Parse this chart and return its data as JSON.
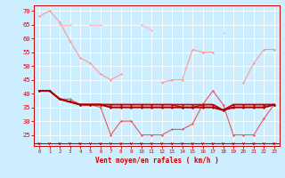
{
  "x": [
    0,
    1,
    2,
    3,
    4,
    5,
    6,
    7,
    8,
    9,
    10,
    11,
    12,
    13,
    14,
    15,
    16,
    17,
    18,
    19,
    20,
    21,
    22,
    23
  ],
  "series": [
    {
      "color": "#ff9999",
      "linewidth": 0.8,
      "marker": "D",
      "markersize": 1.5,
      "y": [
        68,
        70,
        66,
        59,
        53,
        51,
        47,
        45,
        47,
        null,
        null,
        null,
        44,
        45,
        45,
        56,
        55,
        55,
        null,
        null,
        44,
        51,
        56,
        56
      ]
    },
    {
      "color": "#ffbbbb",
      "linewidth": 0.8,
      "marker": "D",
      "markersize": 1.5,
      "y": [
        null,
        null,
        65,
        65,
        null,
        65,
        65,
        null,
        null,
        null,
        65,
        63,
        null,
        null,
        null,
        null,
        null,
        null,
        62,
        null,
        null,
        null,
        null,
        null
      ]
    },
    {
      "color": "#ee5555",
      "linewidth": 0.8,
      "marker": "D",
      "markersize": 1.5,
      "y": [
        41,
        41,
        38,
        38,
        36,
        36,
        35,
        25,
        30,
        30,
        25,
        25,
        25,
        27,
        27,
        29,
        36,
        41,
        36,
        25,
        25,
        25,
        31,
        36
      ]
    },
    {
      "color": "#cc1111",
      "linewidth": 1.0,
      "marker": "D",
      "markersize": 1.5,
      "y": [
        41,
        41,
        38,
        37,
        36,
        36,
        36,
        36,
        36,
        36,
        36,
        36,
        36,
        36,
        35,
        35,
        36,
        36,
        34,
        36,
        36,
        36,
        36,
        36
      ]
    },
    {
      "color": "#cc0000",
      "linewidth": 1.2,
      "marker": "D",
      "markersize": 1.5,
      "y": [
        41,
        41,
        38,
        37,
        36,
        36,
        36,
        36,
        36,
        36,
        36,
        36,
        36,
        36,
        36,
        36,
        36,
        36,
        34,
        36,
        36,
        36,
        36,
        36
      ]
    },
    {
      "color": "#aa0000",
      "linewidth": 1.5,
      "marker": "D",
      "markersize": 1.5,
      "y": [
        41,
        41,
        38,
        37,
        36,
        36,
        36,
        35,
        35,
        35,
        35,
        35,
        35,
        35,
        35,
        35,
        35,
        35,
        34,
        35,
        35,
        35,
        35,
        36
      ]
    }
  ],
  "baseline_y": 22,
  "xlabel": "Vent moyen/en rafales ( km/h )",
  "ylim": [
    21,
    72
  ],
  "yticks": [
    25,
    30,
    35,
    40,
    45,
    50,
    55,
    60,
    65,
    70
  ],
  "xticks": [
    0,
    1,
    2,
    3,
    4,
    5,
    6,
    7,
    8,
    9,
    10,
    11,
    12,
    13,
    14,
    15,
    16,
    17,
    18,
    19,
    20,
    21,
    22,
    23
  ],
  "background_color": "#cceeff",
  "grid_color": "#ffffff",
  "text_color": "#cc0000",
  "spine_color": "#cc0000",
  "baseline_color": "#cc0000"
}
